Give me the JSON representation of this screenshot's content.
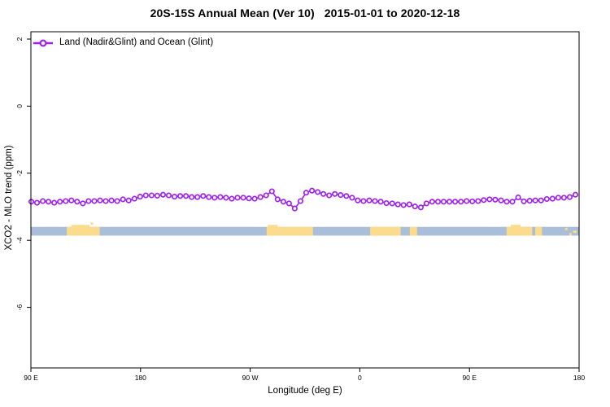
{
  "title": "20S-15S Annual Mean (Ver 10)   2015-01-01 to 2020-12-18",
  "legend": {
    "label": "Land (Nadir&Glint) and Ocean (Glint)"
  },
  "axes": {
    "x": {
      "label": "Longitude (deg E)",
      "tick_labels": [
        "90 E",
        "180",
        "90 W",
        "0",
        "90 E",
        "180"
      ]
    },
    "y": {
      "label": "XCO2 - MLO trend (ppm)",
      "tick_labels": [
        "2",
        "0",
        "-2",
        "-4",
        "-6"
      ],
      "tick_values": [
        2,
        0,
        -2,
        -4,
        -6
      ]
    }
  },
  "colors": {
    "series": "#A020F0",
    "ocean_band": "#A9BED9",
    "land_band": "#FBDC8C",
    "axis": "#000000"
  },
  "chart_data": {
    "type": "line",
    "title": "20S-15S Annual Mean (Ver 10)   2015-01-01 to 2020-12-18",
    "xlabel": "Longitude (deg E)",
    "ylabel": "XCO2 - MLO trend (ppm)",
    "x_axis_span_deg": 450,
    "x_tick_positions_deg": [
      0,
      90,
      180,
      270,
      360,
      450
    ],
    "x_tick_labels": [
      "90 E",
      "180",
      "90 W",
      "0",
      "90 E",
      "180"
    ],
    "y_tick_values": [
      2,
      0,
      -2,
      -4,
      -6
    ],
    "ylim": [
      -7.8,
      2.2
    ],
    "grid": false,
    "legend_position": "top-left",
    "series": [
      {
        "name": "Land (Nadir&Glint) and Ocean (Glint)",
        "color": "#A020F0",
        "marker": "open-circle",
        "values_ppm": [
          -2.85,
          -2.88,
          -2.83,
          -2.85,
          -2.88,
          -2.85,
          -2.83,
          -2.81,
          -2.85,
          -2.9,
          -2.83,
          -2.83,
          -2.81,
          -2.83,
          -2.81,
          -2.83,
          -2.78,
          -2.81,
          -2.76,
          -2.7,
          -2.66,
          -2.66,
          -2.67,
          -2.64,
          -2.66,
          -2.7,
          -2.68,
          -2.68,
          -2.71,
          -2.71,
          -2.68,
          -2.71,
          -2.73,
          -2.71,
          -2.73,
          -2.76,
          -2.73,
          -2.73,
          -2.75,
          -2.76,
          -2.71,
          -2.66,
          -2.54,
          -2.78,
          -2.85,
          -2.9,
          -3.05,
          -2.83,
          -2.58,
          -2.52,
          -2.56,
          -2.62,
          -2.66,
          -2.62,
          -2.65,
          -2.68,
          -2.73,
          -2.81,
          -2.83,
          -2.81,
          -2.83,
          -2.85,
          -2.89,
          -2.9,
          -2.93,
          -2.95,
          -2.93,
          -2.99,
          -3.02,
          -2.9,
          -2.85,
          -2.85,
          -2.85,
          -2.85,
          -2.85,
          -2.85,
          -2.83,
          -2.84,
          -2.83,
          -2.8,
          -2.78,
          -2.79,
          -2.81,
          -2.85,
          -2.85,
          -2.72,
          -2.84,
          -2.82,
          -2.81,
          -2.81,
          -2.77,
          -2.76,
          -2.73,
          -2.73,
          -2.71,
          -2.64
        ]
      }
    ],
    "map_band": {
      "description": "20S-15S latitude strip map: ocean with land patches",
      "ocean_color": "#A9BED9",
      "land_color": "#FBDC8C",
      "y_range_ppm": [
        -3.86,
        -3.6
      ],
      "land_segments_deg": [
        [
          29.5,
          56.5
        ],
        [
          193.5,
          231.5
        ],
        [
          278.5,
          303.5
        ],
        [
          311,
          317
        ],
        [
          390.5,
          411.5
        ],
        [
          414,
          419.5
        ]
      ],
      "bump_segments_deg": [
        [
          33.5,
          48
        ],
        [
          194.5,
          202.5
        ],
        [
          394,
          402
        ]
      ],
      "specks": [
        {
          "d0": 49,
          "d1": 51,
          "row": "above"
        },
        {
          "d0": 438.5,
          "d1": 440.5,
          "row": "top"
        },
        {
          "d0": 442,
          "d1": 444,
          "row": "bottom"
        },
        {
          "d0": 445,
          "d1": 448,
          "row": "mid"
        }
      ]
    }
  }
}
